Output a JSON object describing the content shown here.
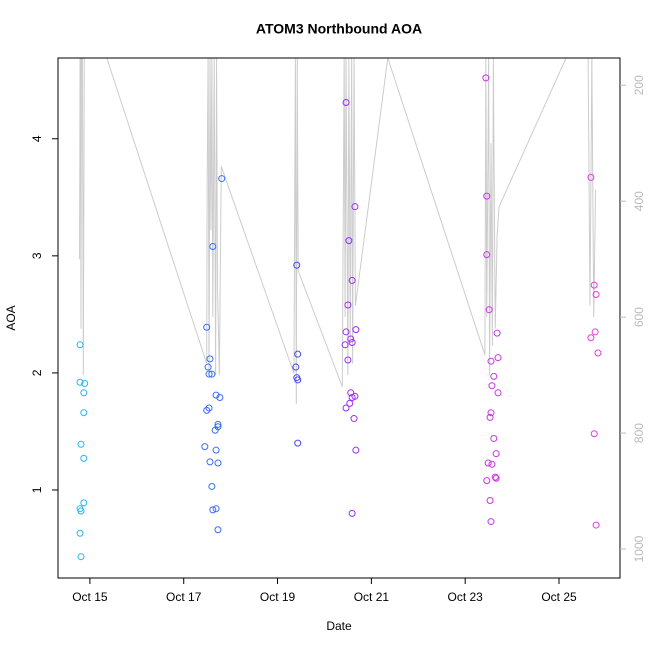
{
  "chart_data": {
    "type": "scatter",
    "title": "ATOM3 Northbound AOA",
    "xlabel": "Date",
    "ylabel": "AOA",
    "xlim": [
      14.32,
      26.3
    ],
    "xticks": [
      {
        "value": 15,
        "label": "Oct 15"
      },
      {
        "value": 17,
        "label": "Oct 17"
      },
      {
        "value": 19,
        "label": "Oct 19"
      },
      {
        "value": 21,
        "label": "Oct 21"
      },
      {
        "value": 23,
        "label": "Oct 23"
      },
      {
        "value": 25,
        "label": "Oct 25"
      }
    ],
    "ylim": [
      0.248,
      4.69
    ],
    "yticks": [
      1,
      2,
      3,
      4
    ],
    "y2lim": [
      1050,
      153
    ],
    "y2ticks": [
      200,
      400,
      600,
      800,
      1000
    ],
    "y2_tick_color": "#bbbbbb",
    "series": [
      {
        "type": "line",
        "axis": "y2",
        "color": "#cccccc",
        "x": [
          14.78,
          14.79,
          14.8,
          14.81,
          14.82,
          14.84,
          14.86,
          14.88,
          15.36,
          17.49,
          17.5,
          17.52,
          17.54,
          17.56,
          17.58,
          17.6,
          17.62,
          17.65,
          17.68,
          17.7,
          17.72,
          17.76,
          17.8,
          19.35,
          19.38,
          19.4,
          19.42,
          19.44,
          20.38,
          20.42,
          20.44,
          20.46,
          20.5,
          20.52,
          20.55,
          20.58,
          20.6,
          20.63,
          20.66,
          21.35,
          23.42,
          23.44,
          23.46,
          23.5,
          23.52,
          23.55,
          23.58,
          23.6,
          23.64,
          23.68,
          23.72,
          25.15,
          25.62,
          25.66,
          25.7,
          25.74,
          25.78
        ],
        "values": [
          500,
          150,
          150,
          620,
          150,
          150,
          700,
          150,
          153,
          680,
          360,
          150,
          700,
          150,
          450,
          150,
          600,
          150,
          700,
          150,
          550,
          700,
          340,
          697,
          150,
          750,
          150,
          520,
          720,
          150,
          600,
          150,
          700,
          150,
          640,
          150,
          680,
          150,
          580,
          153,
          665,
          150,
          600,
          150,
          700,
          300,
          650,
          150,
          620,
          460,
          410,
          153,
          150,
          580,
          150,
          600,
          380
        ]
      },
      {
        "color": "#22b8ee",
        "x": [
          14.79,
          14.79,
          14.89,
          14.87,
          14.87,
          14.81,
          14.87,
          14.87,
          14.79,
          14.81,
          14.79,
          14.81
        ],
        "values": [
          2.24,
          1.92,
          1.91,
          1.83,
          1.66,
          1.39,
          1.27,
          0.89,
          0.84,
          0.82,
          0.63,
          0.43
        ]
      },
      {
        "color": "#3b6cf5",
        "x": [
          17.49,
          17.56,
          17.52,
          17.54,
          17.6,
          17.62,
          17.81,
          17.69,
          17.77,
          17.54,
          17.49,
          17.73,
          17.73,
          17.67,
          17.45,
          17.69,
          17.56,
          17.73,
          17.6,
          17.69,
          17.62,
          17.73
        ],
        "values": [
          2.39,
          2.12,
          2.05,
          1.99,
          1.99,
          3.08,
          3.66,
          1.81,
          1.79,
          1.7,
          1.68,
          1.56,
          1.54,
          1.51,
          1.37,
          1.34,
          1.24,
          1.23,
          1.03,
          0.84,
          0.83,
          0.66
        ]
      },
      {
        "color": "#4646ee",
        "x": [
          19.41,
          19.43,
          19.39,
          19.41,
          19.43,
          19.43
        ],
        "values": [
          2.92,
          2.16,
          2.05,
          1.96,
          1.94,
          1.4
        ]
      },
      {
        "color": "#9a2ef0",
        "x": [
          20.46,
          20.65,
          20.52,
          20.59,
          20.5,
          20.67,
          20.46,
          20.56,
          20.59,
          20.44,
          20.5,
          20.56,
          20.65,
          20.59,
          20.54,
          20.46,
          20.63,
          20.67,
          20.59
        ],
        "values": [
          4.31,
          3.42,
          3.13,
          2.79,
          2.58,
          2.37,
          2.35,
          2.29,
          2.26,
          2.24,
          2.11,
          1.83,
          1.8,
          1.79,
          1.74,
          1.7,
          1.61,
          1.34,
          0.8
        ]
      },
      {
        "color": "#cc33e6",
        "x": [
          23.44,
          23.46,
          23.46,
          23.51,
          23.68,
          23.7,
          23.55,
          23.61,
          23.57,
          23.7,
          23.55,
          23.53,
          23.61,
          23.66,
          23.49,
          23.57,
          23.64,
          23.66,
          23.46,
          23.53,
          23.55
        ],
        "values": [
          4.52,
          3.51,
          3.01,
          2.54,
          2.34,
          2.13,
          2.1,
          1.97,
          1.89,
          1.83,
          1.66,
          1.62,
          1.44,
          1.31,
          1.23,
          1.22,
          1.11,
          1.1,
          1.08,
          0.91,
          0.73
        ]
      },
      {
        "color": "#e63ee0",
        "x": [
          25.68,
          25.75,
          25.79,
          25.77,
          25.68,
          25.83,
          25.75,
          25.79
        ],
        "values": [
          3.67,
          2.75,
          2.67,
          2.35,
          2.3,
          2.17,
          1.48,
          0.7
        ]
      }
    ]
  }
}
